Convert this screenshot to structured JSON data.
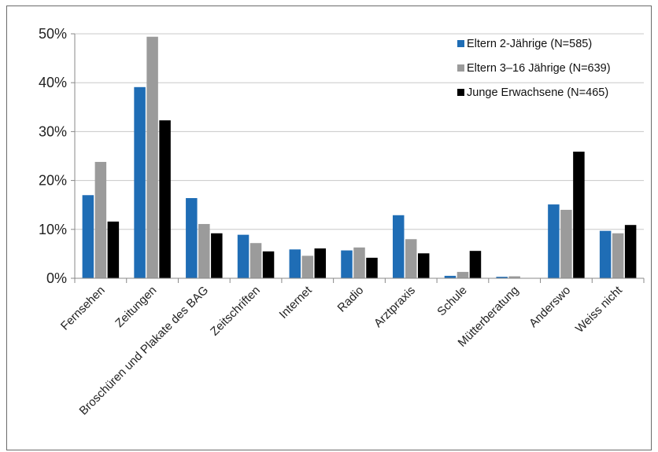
{
  "chart_data": {
    "type": "bar",
    "title": "",
    "xlabel": "",
    "ylabel": "",
    "ylim": [
      0,
      50
    ],
    "y_ticks": [
      "0%",
      "10%",
      "20%",
      "30%",
      "40%",
      "50%"
    ],
    "grid": true,
    "legend_position": "top-right",
    "categories": [
      "Fernsehen",
      "Zeitungen",
      "Broschüren und Plakate des BAG",
      "Zeitschriften",
      "Internet",
      "Radio",
      "Arztpraxis",
      "Schule",
      "Mütterberatung",
      "Anderswo",
      "Weiss nicht"
    ],
    "series": [
      {
        "name": "Eltern 2-Jährige (N=585)",
        "color": "#1f6db5",
        "values": [
          17.0,
          39.1,
          16.4,
          8.9,
          5.9,
          5.7,
          12.9,
          0.5,
          0.3,
          15.1,
          9.7
        ]
      },
      {
        "name": "Eltern 3–16 Jährige (N=639)",
        "color": "#9b9b9b",
        "values": [
          23.8,
          49.4,
          11.1,
          7.2,
          4.6,
          6.3,
          8.0,
          1.3,
          0.4,
          14.0,
          9.2
        ]
      },
      {
        "name": "Junge Erwachsene (N=465)",
        "color": "#000000",
        "values": [
          11.6,
          32.3,
          9.2,
          5.5,
          6.1,
          4.2,
          5.1,
          5.6,
          0.0,
          25.9,
          10.9
        ]
      }
    ]
  }
}
